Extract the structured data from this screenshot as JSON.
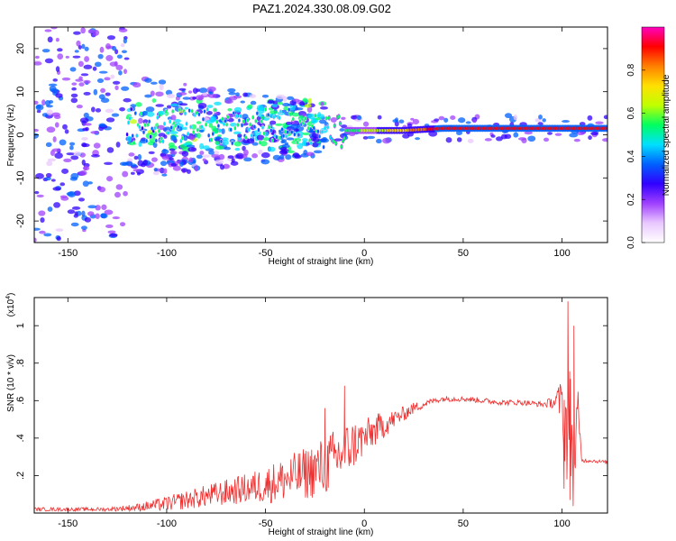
{
  "title": "PAZ1.2024.330.08.09.G02",
  "chart_data": [
    {
      "type": "heatmap",
      "title": "PAZ1.2024.330.08.09.G02",
      "xlabel": "Height of straight line (km)",
      "ylabel": "Frequency (Hz)",
      "xlim": [
        -167,
        123
      ],
      "ylim": [
        -25,
        25
      ],
      "x_ticks": [
        -150,
        -100,
        -50,
        0,
        50,
        100
      ],
      "y_ticks": [
        -20,
        -10,
        0,
        10,
        20
      ],
      "colorbar": {
        "label": "Normalized spectral amplitude",
        "range": [
          0,
          1
        ],
        "ticks": [
          0.0,
          0.2,
          0.4,
          0.6,
          0.8
        ],
        "colormap": [
          "#ffffff",
          "#e9c8ff",
          "#a040ff",
          "#3000ff",
          "#0060ff",
          "#00e0ff",
          "#00ff60",
          "#c0ff00",
          "#ffe000",
          "#ff8000",
          "#ff0000",
          "#ff00c0"
        ]
      },
      "ridge": {
        "x": [
          -120,
          -100,
          -80,
          -60,
          -40,
          -20,
          -10,
          0,
          20,
          40,
          60,
          80,
          100,
          110,
          123
        ],
        "frequency": [
          2,
          2,
          2,
          2,
          2,
          1,
          1,
          1,
          1,
          1.5,
          1.5,
          1.5,
          1.5,
          1.5,
          1.5
        ],
        "amplitude": [
          0.25,
          0.35,
          0.3,
          0.3,
          0.3,
          0.35,
          0.55,
          0.6,
          0.75,
          0.95,
          0.95,
          0.95,
          0.95,
          0.95,
          0.95
        ]
      }
    },
    {
      "type": "line",
      "xlabel": "Height of straight line (km)",
      "ylabel": "SNR (10 * v/v)",
      "y_multiplier": "(x10",
      "y_multiplier_exp": "4",
      "xlim": [
        -167,
        123
      ],
      "ylim": [
        0,
        1.15
      ],
      "x_ticks": [
        -150,
        -100,
        -50,
        0,
        50,
        100
      ],
      "y_ticks": [
        0.2,
        0.4,
        0.6,
        0.8,
        1
      ],
      "series": [
        {
          "color": "#ee3030",
          "x": [
            -167,
            -150,
            -130,
            -115,
            -100,
            -90,
            -80,
            -70,
            -60,
            -50,
            -40,
            -30,
            -20,
            -15,
            -10,
            -5,
            0,
            5,
            10,
            15,
            20,
            25,
            30,
            35,
            40,
            50,
            60,
            70,
            80,
            90,
            95,
            100,
            102,
            104,
            106,
            108,
            110,
            115,
            123
          ],
          "values": [
            0.02,
            0.02,
            0.02,
            0.03,
            0.05,
            0.07,
            0.09,
            0.11,
            0.13,
            0.15,
            0.18,
            0.21,
            0.25,
            0.29,
            0.33,
            0.37,
            0.4,
            0.44,
            0.47,
            0.5,
            0.53,
            0.56,
            0.58,
            0.6,
            0.61,
            0.61,
            0.6,
            0.59,
            0.59,
            0.58,
            0.59,
            0.6,
            0.45,
            0.5,
            0.3,
            0.52,
            0.28,
            0.28,
            0.27
          ],
          "noise": [
            0.01,
            0.01,
            0.01,
            0.02,
            0.04,
            0.05,
            0.06,
            0.07,
            0.08,
            0.1,
            0.12,
            0.14,
            0.16,
            0.16,
            0.15,
            0.13,
            0.1,
            0.09,
            0.07,
            0.05,
            0.04,
            0.03,
            0.02,
            0.015,
            0.015,
            0.015,
            0.015,
            0.015,
            0.015,
            0.015,
            0.03,
            0.12,
            0.3,
            0.3,
            0.3,
            0.15,
            0.01,
            0.01,
            0.01
          ],
          "spikes": [
            {
              "x": -10,
              "y": 0.68
            },
            {
              "x": -20,
              "y": 0.56
            },
            {
              "x": 103,
              "y": 1.13
            },
            {
              "x": 104,
              "y": 0.07
            },
            {
              "x": 106,
              "y": 1.0
            },
            {
              "x": 101,
              "y": 0.13
            }
          ]
        }
      ]
    }
  ]
}
